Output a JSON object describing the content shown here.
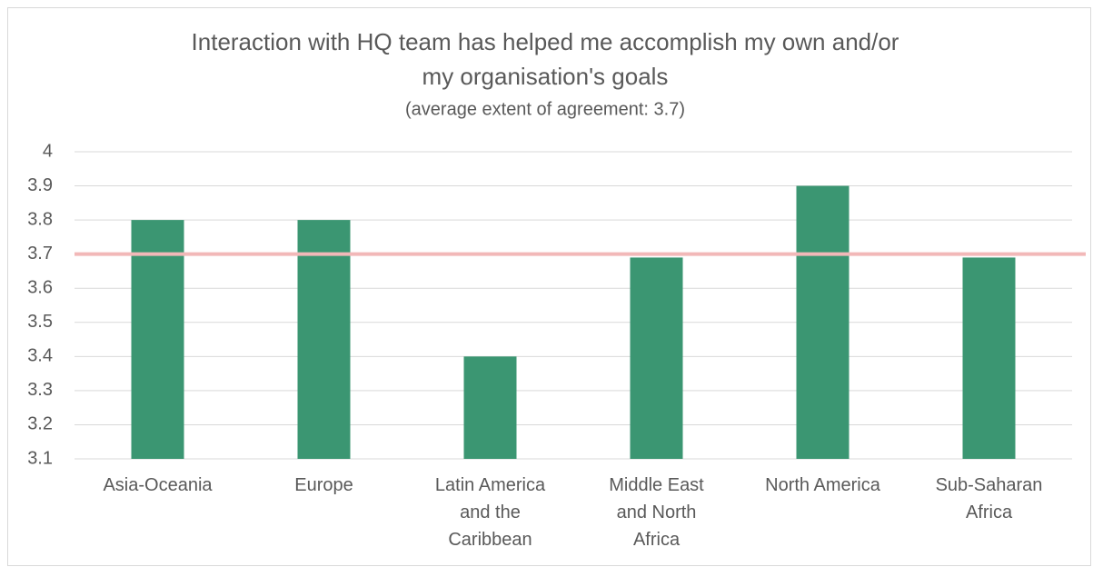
{
  "chart_data": {
    "type": "bar",
    "title": [
      "Interaction with HQ team has helped me accomplish my own and/or",
      "my organisation's goals"
    ],
    "subtitle": "(average extent of agreement: 3.7)",
    "categories": [
      "Asia-Oceania",
      "Europe",
      "Latin America and the Caribbean",
      "Middle East and North Africa",
      "North America",
      "Sub-Saharan Africa"
    ],
    "values": [
      3.8,
      3.8,
      3.4,
      3.69,
      3.9,
      3.69
    ],
    "color": "#3b9672",
    "reference_line": {
      "value": 3.7,
      "color": "#f2b8b8"
    },
    "ylim": [
      3.1,
      4
    ],
    "yticks": [
      3.1,
      3.2,
      3.3,
      3.4,
      3.5,
      3.6,
      3.7,
      3.8,
      3.9,
      4
    ],
    "grid": true
  }
}
